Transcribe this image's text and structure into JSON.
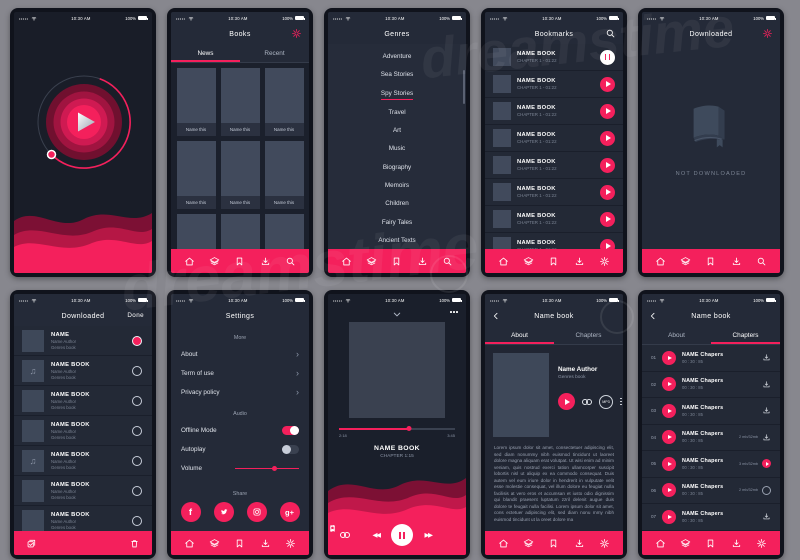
{
  "watermark": {
    "text": "dreamstime"
  },
  "colors": {
    "accent": "#f4205c",
    "accent_mid": "#c0184a",
    "accent_dark": "#7c1034",
    "canvas_bg": "#87878e",
    "phone_frame": "#10131c",
    "screen_bg": "#242a38",
    "cover": "#414a5c",
    "text_muted": "#8b94a6"
  },
  "status_bar": {
    "time": "10:30 AM",
    "battery": "100%",
    "icons": [
      "signal-dots",
      "wifi",
      "battery"
    ]
  },
  "nav": {
    "icons": [
      "home",
      "my-books",
      "bookmarks",
      "downloads",
      "search"
    ],
    "alt_last_icon": "settings"
  },
  "books": {
    "title": "Books",
    "tabs": [
      {
        "label": "News"
      },
      {
        "label": "Recent"
      }
    ],
    "active_tab": "News",
    "cover_label": "Name this",
    "cover_count": 9
  },
  "genres": {
    "title": "Genres",
    "items": [
      "Adventure",
      "Sea Stories",
      "Spy Stories",
      "Travel",
      "Art",
      "Music",
      "Biography",
      "Memoirs",
      "Children",
      "Fairy Tales",
      "Ancient Texts"
    ],
    "active_item": "Spy Stories"
  },
  "bookmarks": {
    "title": "Bookmarks",
    "item_title": "NAME BOOK",
    "item_subtitle": "CHAPTER 1 - 01:22",
    "item_count": 8
  },
  "downloaded_empty": {
    "title": "Downloaded",
    "message": "NOT DOWNLOADED"
  },
  "downloaded_edit": {
    "title": "Downloaded",
    "done_label": "Done",
    "items": [
      {
        "title": "NAME",
        "author": "Name Author",
        "genre": "Genres book"
      },
      {
        "title": "NAME BOOK",
        "author": "Name Author",
        "genre": "Genres book"
      },
      {
        "title": "NAME BOOK",
        "author": "Name Author",
        "genre": "Genres book"
      },
      {
        "title": "NAME BOOK",
        "author": "Name Author",
        "genre": "Genres book"
      },
      {
        "title": "NAME BOOK",
        "author": "Name Author",
        "genre": "Genres book"
      },
      {
        "title": "NAME BOOK",
        "author": "Name Author",
        "genre": "Genres book"
      },
      {
        "title": "NAME BOOK",
        "author": "Name Author",
        "genre": "Genres book"
      }
    ]
  },
  "settings": {
    "title": "Settings",
    "sections": {
      "more": "More",
      "audio": "Audio",
      "share": "Share"
    },
    "links": [
      "About",
      "Term of use",
      "Privacy policy"
    ],
    "toggles": [
      {
        "label": "Offline Mode",
        "on": true
      },
      {
        "label": "Autoplay",
        "on": false
      }
    ],
    "volume": {
      "label": "Volume",
      "percent": 58
    },
    "social_icons": [
      "facebook",
      "twitter",
      "instagram",
      "google-plus"
    ]
  },
  "player": {
    "book_title": "NAME BOOK",
    "chapter": "CHAPTER 1:15",
    "elapsed": "2:18",
    "duration": "3:45",
    "progress_percent": 60,
    "controls": [
      "endless-loop",
      "repeat",
      "rewind",
      "pause",
      "fast-forward",
      "bookmark",
      "sleep-light"
    ]
  },
  "book_detail": {
    "title": "Name book",
    "tabs": [
      {
        "label": "About"
      },
      {
        "label": "Chapters"
      }
    ],
    "about": {
      "author": "Name Author",
      "genre": "Genres book",
      "format_badge": "MP3",
      "description": "Lorem ipsum dolor sit amet, consectetuer adipiscing elit, sed diam nonummy nibh euismod tincidunt ut laoreet dolore magna aliquam erat volutpat. Ut wisi enim ad minim veniam, quis nostrud exerci tation ullamcorper suscipit lobortis nisl ut aliquip ex ea commodo consequat. Duis autem vel eum iriure dolor in hendrerit in vulputate velit esse molestie consequat, vel illum dolore eu feugiat nulla facilisis at vero eros et accumsan et iusto odio dignissim qui blandit praesent luptatum zzril delenit augue duis dolore te feugait nulla facilisi. Lorem ipsum dolor sit amet, cons ectetuer adipiscing elit, sed diam nonu mmy nibh euismod tincidunt ut la oreet dolore ma"
    },
    "chapters": {
      "items": [
        {
          "num": "01",
          "title": "NAME Chapers",
          "time": "00 : 30 : 85",
          "size": "",
          "action": "download"
        },
        {
          "num": "02",
          "title": "NAME Chapers",
          "time": "00 : 30 : 85",
          "size": "",
          "action": "download"
        },
        {
          "num": "03",
          "title": "NAME Chapers",
          "time": "00 : 30 : 85",
          "size": "",
          "action": "download"
        },
        {
          "num": "04",
          "title": "NAME Chapers",
          "time": "00 : 30 : 85",
          "size": "2 mb/32mb",
          "action": "download"
        },
        {
          "num": "05",
          "title": "NAME Chapers",
          "time": "00 : 30 : 85",
          "size": "3 mb/32mb",
          "action": "downloading"
        },
        {
          "num": "06",
          "title": "NAME Chapers",
          "time": "00 : 30 : 85",
          "size": "2 mb/32mb",
          "action": "paused"
        },
        {
          "num": "07",
          "title": "NAME Chapers",
          "time": "00 : 30 : 85",
          "size": "",
          "action": "download"
        }
      ]
    }
  }
}
